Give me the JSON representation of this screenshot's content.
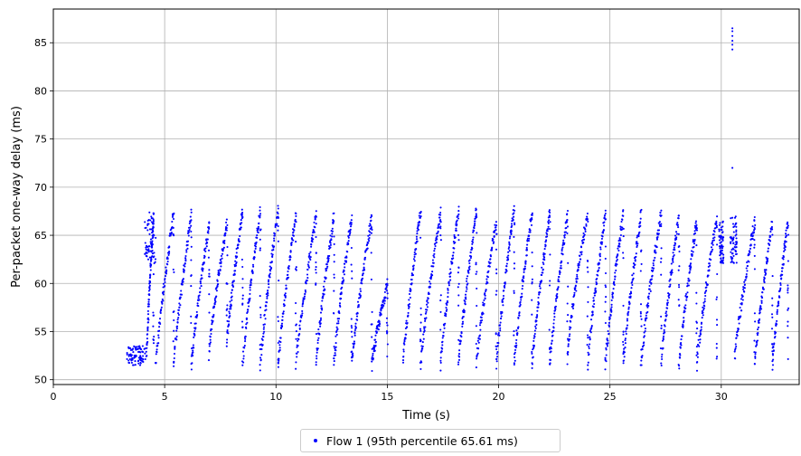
{
  "chart_data": {
    "type": "scatter",
    "title": "",
    "xlabel": "Time (s)",
    "ylabel": "Per-packet one-way delay (ms)",
    "xlim": [
      0,
      33.5
    ],
    "ylim": [
      49.5,
      88.5
    ],
    "xticks": [
      0,
      5,
      10,
      15,
      20,
      25,
      30
    ],
    "yticks": [
      50,
      55,
      60,
      65,
      70,
      75,
      80,
      85
    ],
    "grid": true,
    "legend_position": "bottom-center",
    "series": [
      {
        "name": "Flow 1 (95th percentile 65.61 ms)",
        "color": "#0000ff",
        "start_cluster": {
          "x": [
            3.3,
            4.2
          ],
          "y": [
            51.5,
            53.5
          ]
        },
        "sawtooth_cycles": [
          {
            "x0": 4.2,
            "x1": 4.5,
            "ymin": 53.0,
            "ymax": 67.0
          },
          {
            "x0": 4.6,
            "x1": 5.4,
            "ymin": 51.5,
            "ymax": 67.3
          },
          {
            "x0": 5.4,
            "x1": 6.2,
            "ymin": 51.5,
            "ymax": 67.3
          },
          {
            "x0": 6.2,
            "x1": 7.0,
            "ymin": 51.5,
            "ymax": 66.2
          },
          {
            "x0": 7.0,
            "x1": 7.8,
            "ymin": 53.0,
            "ymax": 66.3
          },
          {
            "x0": 7.8,
            "x1": 8.5,
            "ymin": 54.0,
            "ymax": 67.4
          },
          {
            "x0": 8.5,
            "x1": 9.3,
            "ymin": 51.5,
            "ymax": 67.7
          },
          {
            "x0": 9.3,
            "x1": 10.1,
            "ymin": 51.5,
            "ymax": 67.8
          },
          {
            "x0": 10.1,
            "x1": 10.9,
            "ymin": 51.5,
            "ymax": 67.3
          },
          {
            "x0": 10.9,
            "x1": 11.8,
            "ymin": 51.5,
            "ymax": 67.0
          },
          {
            "x0": 11.8,
            "x1": 12.6,
            "ymin": 51.5,
            "ymax": 67.0
          },
          {
            "x0": 12.6,
            "x1": 13.4,
            "ymin": 51.5,
            "ymax": 67.0
          },
          {
            "x0": 13.4,
            "x1": 14.3,
            "ymin": 51.5,
            "ymax": 67.0
          },
          {
            "x0": 14.3,
            "x1": 15.0,
            "ymin": 51.5,
            "ymax": 60.0
          },
          {
            "x0": 15.7,
            "x1": 16.5,
            "ymin": 51.5,
            "ymax": 67.5
          },
          {
            "x0": 16.5,
            "x1": 17.4,
            "ymin": 51.5,
            "ymax": 67.5
          },
          {
            "x0": 17.4,
            "x1": 18.2,
            "ymin": 51.5,
            "ymax": 67.6
          },
          {
            "x0": 18.2,
            "x1": 19.0,
            "ymin": 51.5,
            "ymax": 67.5
          },
          {
            "x0": 19.0,
            "x1": 19.9,
            "ymin": 51.5,
            "ymax": 66.5
          },
          {
            "x0": 19.9,
            "x1": 20.7,
            "ymin": 51.5,
            "ymax": 67.8
          },
          {
            "x0": 20.7,
            "x1": 21.5,
            "ymin": 51.5,
            "ymax": 67.5
          },
          {
            "x0": 21.5,
            "x1": 22.3,
            "ymin": 51.5,
            "ymax": 67.3
          },
          {
            "x0": 22.3,
            "x1": 23.1,
            "ymin": 51.5,
            "ymax": 67.3
          },
          {
            "x0": 23.1,
            "x1": 24.0,
            "ymin": 53.0,
            "ymax": 67.3
          },
          {
            "x0": 24.0,
            "x1": 24.8,
            "ymin": 51.5,
            "ymax": 67.3
          },
          {
            "x0": 24.8,
            "x1": 25.6,
            "ymin": 51.5,
            "ymax": 67.3
          },
          {
            "x0": 25.6,
            "x1": 26.4,
            "ymin": 51.5,
            "ymax": 67.3
          },
          {
            "x0": 26.4,
            "x1": 27.3,
            "ymin": 51.5,
            "ymax": 67.3
          },
          {
            "x0": 27.3,
            "x1": 28.1,
            "ymin": 51.5,
            "ymax": 67.0
          },
          {
            "x0": 28.1,
            "x1": 28.9,
            "ymin": 51.5,
            "ymax": 66.5
          },
          {
            "x0": 28.9,
            "x1": 29.8,
            "ymin": 51.5,
            "ymax": 66.7
          },
          {
            "x0": 30.6,
            "x1": 31.5,
            "ymin": 52.0,
            "ymax": 66.5
          },
          {
            "x0": 31.5,
            "x1": 32.3,
            "ymin": 51.5,
            "ymax": 66.5
          },
          {
            "x0": 32.3,
            "x1": 33.0,
            "ymin": 51.5,
            "ymax": 66.5
          }
        ],
        "plateau_segments": [
          {
            "x0": 4.1,
            "x1": 4.6,
            "ymin": 62.0,
            "ymax": 67.5
          },
          {
            "x0": 29.9,
            "x1": 30.1,
            "ymin": 62.0,
            "ymax": 66.5
          },
          {
            "x0": 30.4,
            "x1": 30.7,
            "ymin": 62.0,
            "ymax": 67.0
          }
        ],
        "outliers": [
          {
            "x": 30.5,
            "y": 84.3
          },
          {
            "x": 30.5,
            "y": 84.8
          },
          {
            "x": 30.5,
            "y": 85.2
          },
          {
            "x": 30.5,
            "y": 85.7
          },
          {
            "x": 30.5,
            "y": 86.2
          },
          {
            "x": 30.5,
            "y": 86.5
          },
          {
            "x": 30.5,
            "y": 72.0
          }
        ]
      }
    ]
  }
}
